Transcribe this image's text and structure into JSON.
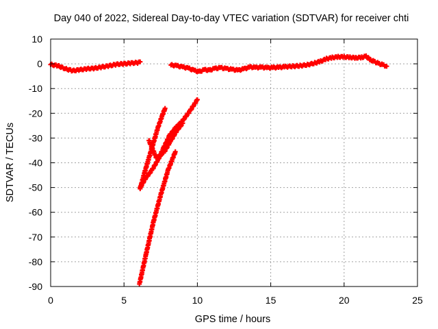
{
  "chart_data": {
    "type": "scatter",
    "title": "Day 040 of 2022, Sidereal Day-to-day VTEC variation (SDTVAR) for receiver chti",
    "xlabel": "GPS time / hours",
    "ylabel": "SDTVAR / TECUs",
    "xlim": [
      0,
      25
    ],
    "ylim": [
      -90,
      10
    ],
    "xticks": [
      0,
      5,
      10,
      15,
      20,
      25
    ],
    "yticks": [
      10,
      0,
      -10,
      -20,
      -30,
      -40,
      -50,
      -60,
      -70,
      -80,
      -90
    ],
    "grid": true,
    "marker": "plus",
    "color": "#ff0000",
    "series": [
      {
        "name": "arc-morning",
        "points": [
          [
            0.0,
            -0.3
          ],
          [
            0.5,
            -0.8
          ],
          [
            1.0,
            -2.0
          ],
          [
            1.5,
            -2.8
          ],
          [
            2.0,
            -2.4
          ],
          [
            2.5,
            -2.0
          ],
          [
            3.0,
            -1.8
          ],
          [
            3.5,
            -1.3
          ],
          [
            4.0,
            -0.8
          ],
          [
            4.5,
            -0.2
          ],
          [
            5.0,
            0.0
          ],
          [
            5.5,
            0.3
          ],
          [
            6.0,
            0.5
          ],
          [
            6.1,
            0.8
          ]
        ]
      },
      {
        "name": "arc-day",
        "points": [
          [
            8.2,
            -0.5
          ],
          [
            8.6,
            -0.8
          ],
          [
            9.0,
            -1.3
          ],
          [
            9.4,
            -1.8
          ],
          [
            9.8,
            -2.7
          ],
          [
            10.1,
            -3.2
          ],
          [
            10.5,
            -2.4
          ],
          [
            10.8,
            -2.6
          ],
          [
            11.2,
            -1.9
          ],
          [
            11.6,
            -1.6
          ],
          [
            12.0,
            -2.0
          ],
          [
            12.4,
            -2.3
          ],
          [
            12.8,
            -2.6
          ],
          [
            13.2,
            -2.0
          ],
          [
            13.6,
            -1.3
          ],
          [
            14.0,
            -1.5
          ],
          [
            14.4,
            -1.4
          ],
          [
            14.8,
            -1.6
          ],
          [
            15.2,
            -1.5
          ],
          [
            15.6,
            -1.4
          ],
          [
            16.0,
            -1.2
          ],
          [
            16.5,
            -1.0
          ],
          [
            17.0,
            -0.8
          ],
          [
            17.5,
            -0.4
          ],
          [
            18.0,
            0.3
          ],
          [
            18.4,
            1.0
          ],
          [
            18.8,
            2.0
          ],
          [
            19.2,
            2.5
          ],
          [
            19.6,
            2.8
          ],
          [
            20.0,
            2.8
          ],
          [
            20.4,
            2.6
          ],
          [
            20.8,
            2.4
          ],
          [
            21.2,
            2.6
          ],
          [
            21.5,
            3.0
          ],
          [
            21.8,
            1.6
          ],
          [
            22.1,
            0.8
          ],
          [
            22.4,
            0.0
          ],
          [
            22.7,
            -0.5
          ],
          [
            22.9,
            -1.0
          ]
        ]
      },
      {
        "name": "descent-a",
        "points": [
          [
            6.1,
            -50.5
          ],
          [
            6.4,
            -44
          ],
          [
            6.7,
            -38
          ],
          [
            7.0,
            -32
          ],
          [
            7.3,
            -26
          ],
          [
            7.6,
            -21
          ],
          [
            7.8,
            -18
          ]
        ]
      },
      {
        "name": "descent-b",
        "points": [
          [
            6.1,
            -50.0
          ],
          [
            6.5,
            -46
          ],
          [
            6.9,
            -43
          ],
          [
            7.3,
            -39
          ],
          [
            7.7,
            -34
          ],
          [
            8.1,
            -29
          ],
          [
            8.5,
            -26
          ],
          [
            9.0,
            -23
          ],
          [
            9.5,
            -19
          ],
          [
            10.0,
            -14.5
          ]
        ]
      },
      {
        "name": "descent-c",
        "points": [
          [
            6.7,
            -31
          ],
          [
            7.2,
            -38
          ],
          [
            7.7,
            -36
          ],
          [
            8.2,
            -31
          ],
          [
            8.6,
            -27
          ],
          [
            9.0,
            -24
          ]
        ]
      },
      {
        "name": "descent-d",
        "points": [
          [
            6.05,
            -89
          ],
          [
            6.5,
            -77
          ],
          [
            7.0,
            -64
          ],
          [
            7.5,
            -53
          ],
          [
            8.0,
            -43
          ],
          [
            8.5,
            -35.5
          ]
        ]
      }
    ]
  }
}
